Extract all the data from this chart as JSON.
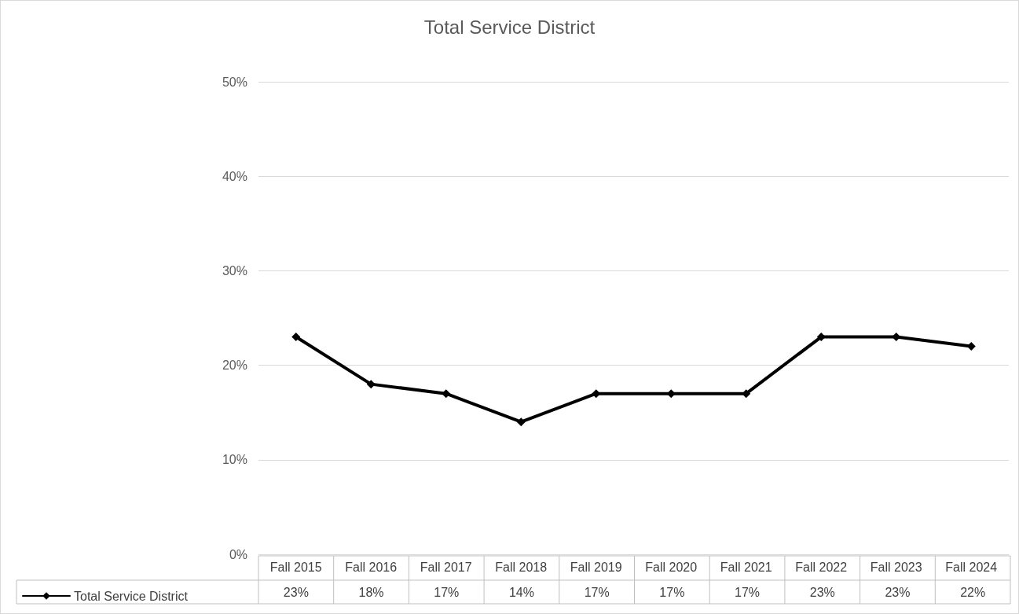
{
  "chart_data": {
    "type": "line",
    "title": "Total Service District",
    "categories": [
      "Fall 2015",
      "Fall 2016",
      "Fall 2017",
      "Fall 2018",
      "Fall 2019",
      "Fall 2020",
      "Fall 2021",
      "Fall 2022",
      "Fall 2023",
      "Fall 2024"
    ],
    "series": [
      {
        "name": "Total Service District",
        "color": "#000000",
        "values": [
          23,
          18,
          17,
          14,
          17,
          17,
          17,
          23,
          23,
          22
        ],
        "value_labels": [
          "23%",
          "18%",
          "17%",
          "14%",
          "17%",
          "17%",
          "17%",
          "23%",
          "23%",
          "22%"
        ]
      }
    ],
    "ylim": [
      0,
      50
    ],
    "yticks": [
      {
        "value": 0,
        "label": "0%"
      },
      {
        "value": 10,
        "label": "10%"
      },
      {
        "value": 20,
        "label": "20%"
      },
      {
        "value": 30,
        "label": "30%"
      },
      {
        "value": 40,
        "label": "40%"
      },
      {
        "value": 50,
        "label": "50%"
      }
    ],
    "grid": "y",
    "legend": "bottom left",
    "marker": "diamond",
    "line_style": "solid"
  }
}
